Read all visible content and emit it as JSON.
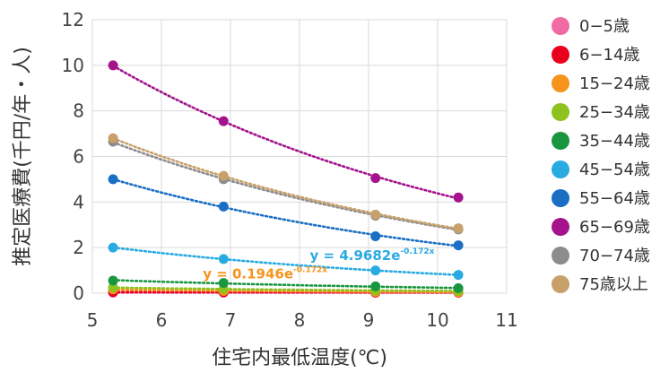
{
  "chart_data": {
    "type": "scatter",
    "xlabel": "住宅内最低温度(℃)",
    "ylabel": "推定医療費(千円/年・人)",
    "xlim": [
      5,
      11
    ],
    "ylim": [
      0,
      12
    ],
    "x_ticks": [
      "5",
      "6",
      "7",
      "8",
      "9",
      "10",
      "11"
    ],
    "y_ticks": [
      "0",
      "2",
      "4",
      "6",
      "8",
      "10",
      "12"
    ],
    "grid": true,
    "legend_position": "right",
    "trendlines": "dotted exponential",
    "x": [
      5.3,
      6.9,
      9.1,
      10.3
    ],
    "series": [
      {
        "name": "0−5歳",
        "color": "#f06aa4",
        "values": [
          0.02,
          0.02,
          0.02,
          0.02
        ]
      },
      {
        "name": "6−14歳",
        "color": "#e8001c",
        "values": [
          0.05,
          0.04,
          0.03,
          0.03
        ]
      },
      {
        "name": "15−24歳",
        "color": "#f7941d",
        "values": [
          0.17,
          0.1,
          0.06,
          0.05
        ]
      },
      {
        "name": "25−34歳",
        "color": "#8dc21f",
        "values": [
          0.25,
          0.18,
          0.12,
          0.1
        ]
      },
      {
        "name": "35−44歳",
        "color": "#1a9641",
        "values": [
          0.55,
          0.45,
          0.3,
          0.22
        ]
      },
      {
        "name": "45−54歳",
        "color": "#29abe2",
        "values": [
          2.0,
          1.5,
          1.0,
          0.8
        ]
      },
      {
        "name": "55−64歳",
        "color": "#1a6fc4",
        "values": [
          5.0,
          3.8,
          2.5,
          2.1
        ]
      },
      {
        "name": "65−69歳",
        "color": "#a4128c",
        "values": [
          10.0,
          7.55,
          5.05,
          4.2
        ]
      },
      {
        "name": "70−74歳",
        "color": "#8c8c8c",
        "values": [
          6.65,
          5.0,
          3.4,
          2.8
        ]
      },
      {
        "name": "75歳以上",
        "color": "#c8a06a",
        "values": [
          6.8,
          5.15,
          3.45,
          2.85
        ]
      }
    ],
    "annotations": [
      {
        "text": "y = 4.9682e",
        "sup": "-0.172x",
        "color": "#29abe2",
        "x": 8.15,
        "y": 1.45
      },
      {
        "text": "y = 0.1946e",
        "sup": "-0.172x",
        "color": "#f7941d",
        "x": 6.6,
        "y": 0.65
      }
    ]
  }
}
